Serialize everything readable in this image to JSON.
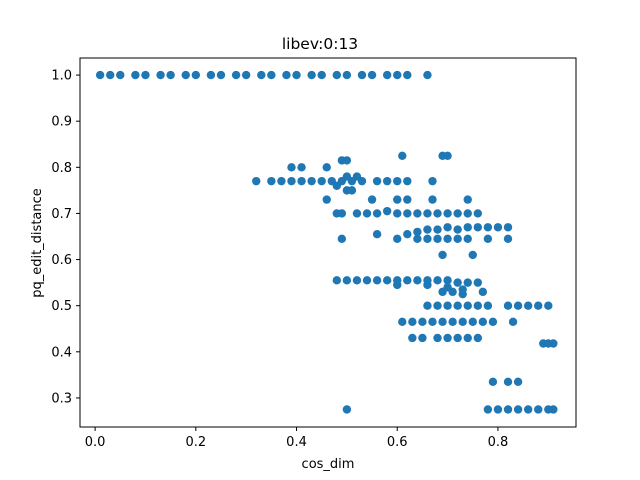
{
  "chart_data": {
    "type": "scatter",
    "title": "libev:0:13",
    "xlabel": "cos_dim",
    "ylabel": "pq_edit_distance",
    "xlim": [
      -0.03,
      0.955
    ],
    "ylim": [
      0.237,
      1.037
    ],
    "xticks": [
      0.0,
      0.2,
      0.4,
      0.6,
      0.8
    ],
    "xtick_labels": [
      "0.0",
      "0.2",
      "0.4",
      "0.6",
      "0.8"
    ],
    "yticks": [
      0.3,
      0.4,
      0.5,
      0.6,
      0.7,
      0.8,
      0.9,
      1.0
    ],
    "ytick_labels": [
      "0.3",
      "0.4",
      "0.5",
      "0.6",
      "0.7",
      "0.8",
      "0.9",
      "1.0"
    ],
    "grid": false,
    "legend": "none",
    "marker_color": "#1f77b4",
    "series": [
      {
        "points": [
          [
            0.01,
            1.0
          ],
          [
            0.03,
            1.0
          ],
          [
            0.05,
            1.0
          ],
          [
            0.08,
            1.0
          ],
          [
            0.1,
            1.0
          ],
          [
            0.13,
            1.0
          ],
          [
            0.15,
            1.0
          ],
          [
            0.18,
            1.0
          ],
          [
            0.2,
            1.0
          ],
          [
            0.23,
            1.0
          ],
          [
            0.25,
            1.0
          ],
          [
            0.28,
            1.0
          ],
          [
            0.3,
            1.0
          ],
          [
            0.33,
            1.0
          ],
          [
            0.35,
            1.0
          ],
          [
            0.38,
            1.0
          ],
          [
            0.4,
            1.0
          ],
          [
            0.43,
            1.0
          ],
          [
            0.45,
            1.0
          ],
          [
            0.48,
            1.0
          ],
          [
            0.5,
            1.0
          ],
          [
            0.53,
            1.0
          ],
          [
            0.55,
            1.0
          ],
          [
            0.58,
            1.0
          ],
          [
            0.6,
            1.0
          ],
          [
            0.62,
            1.0
          ],
          [
            0.66,
            1.0
          ],
          [
            0.32,
            0.77
          ],
          [
            0.35,
            0.77
          ],
          [
            0.37,
            0.77
          ],
          [
            0.39,
            0.77
          ],
          [
            0.41,
            0.77
          ],
          [
            0.43,
            0.77
          ],
          [
            0.45,
            0.77
          ],
          [
            0.47,
            0.77
          ],
          [
            0.49,
            0.77
          ],
          [
            0.51,
            0.77
          ],
          [
            0.53,
            0.77
          ],
          [
            0.56,
            0.77
          ],
          [
            0.58,
            0.77
          ],
          [
            0.6,
            0.77
          ],
          [
            0.62,
            0.77
          ],
          [
            0.67,
            0.77
          ],
          [
            0.39,
            0.8
          ],
          [
            0.41,
            0.8
          ],
          [
            0.46,
            0.8
          ],
          [
            0.49,
            0.815
          ],
          [
            0.5,
            0.815
          ],
          [
            0.5,
            0.78
          ],
          [
            0.52,
            0.78
          ],
          [
            0.48,
            0.76
          ],
          [
            0.5,
            0.75
          ],
          [
            0.51,
            0.75
          ],
          [
            0.61,
            0.825
          ],
          [
            0.69,
            0.825
          ],
          [
            0.7,
            0.825
          ],
          [
            0.46,
            0.73
          ],
          [
            0.48,
            0.7
          ],
          [
            0.49,
            0.7
          ],
          [
            0.52,
            0.7
          ],
          [
            0.54,
            0.7
          ],
          [
            0.56,
            0.7
          ],
          [
            0.58,
            0.705
          ],
          [
            0.6,
            0.7
          ],
          [
            0.62,
            0.7
          ],
          [
            0.64,
            0.7
          ],
          [
            0.66,
            0.7
          ],
          [
            0.68,
            0.7
          ],
          [
            0.7,
            0.7
          ],
          [
            0.72,
            0.7
          ],
          [
            0.74,
            0.7
          ],
          [
            0.76,
            0.7
          ],
          [
            0.55,
            0.73
          ],
          [
            0.6,
            0.73
          ],
          [
            0.62,
            0.73
          ],
          [
            0.67,
            0.73
          ],
          [
            0.74,
            0.73
          ],
          [
            0.49,
            0.645
          ],
          [
            0.56,
            0.655
          ],
          [
            0.6,
            0.645
          ],
          [
            0.62,
            0.655
          ],
          [
            0.64,
            0.66
          ],
          [
            0.66,
            0.665
          ],
          [
            0.68,
            0.665
          ],
          [
            0.7,
            0.67
          ],
          [
            0.72,
            0.665
          ],
          [
            0.74,
            0.67
          ],
          [
            0.76,
            0.67
          ],
          [
            0.78,
            0.67
          ],
          [
            0.8,
            0.67
          ],
          [
            0.82,
            0.67
          ],
          [
            0.64,
            0.645
          ],
          [
            0.66,
            0.645
          ],
          [
            0.68,
            0.645
          ],
          [
            0.7,
            0.645
          ],
          [
            0.72,
            0.645
          ],
          [
            0.74,
            0.645
          ],
          [
            0.78,
            0.645
          ],
          [
            0.82,
            0.645
          ],
          [
            0.69,
            0.61
          ],
          [
            0.75,
            0.61
          ],
          [
            0.48,
            0.555
          ],
          [
            0.5,
            0.555
          ],
          [
            0.52,
            0.555
          ],
          [
            0.54,
            0.555
          ],
          [
            0.56,
            0.555
          ],
          [
            0.58,
            0.555
          ],
          [
            0.6,
            0.555
          ],
          [
            0.62,
            0.555
          ],
          [
            0.64,
            0.555
          ],
          [
            0.66,
            0.555
          ],
          [
            0.68,
            0.555
          ],
          [
            0.7,
            0.555
          ],
          [
            0.72,
            0.55
          ],
          [
            0.74,
            0.55
          ],
          [
            0.76,
            0.55
          ],
          [
            0.6,
            0.545
          ],
          [
            0.66,
            0.545
          ],
          [
            0.7,
            0.54
          ],
          [
            0.73,
            0.535
          ],
          [
            0.69,
            0.53
          ],
          [
            0.71,
            0.53
          ],
          [
            0.73,
            0.525
          ],
          [
            0.77,
            0.53
          ],
          [
            0.66,
            0.5
          ],
          [
            0.68,
            0.5
          ],
          [
            0.7,
            0.5
          ],
          [
            0.72,
            0.5
          ],
          [
            0.74,
            0.5
          ],
          [
            0.76,
            0.5
          ],
          [
            0.78,
            0.5
          ],
          [
            0.82,
            0.5
          ],
          [
            0.84,
            0.5
          ],
          [
            0.86,
            0.5
          ],
          [
            0.88,
            0.5
          ],
          [
            0.9,
            0.5
          ],
          [
            0.61,
            0.465
          ],
          [
            0.63,
            0.465
          ],
          [
            0.65,
            0.465
          ],
          [
            0.67,
            0.465
          ],
          [
            0.69,
            0.465
          ],
          [
            0.71,
            0.465
          ],
          [
            0.73,
            0.465
          ],
          [
            0.75,
            0.465
          ],
          [
            0.77,
            0.465
          ],
          [
            0.79,
            0.465
          ],
          [
            0.83,
            0.465
          ],
          [
            0.63,
            0.43
          ],
          [
            0.65,
            0.43
          ],
          [
            0.68,
            0.43
          ],
          [
            0.7,
            0.43
          ],
          [
            0.72,
            0.43
          ],
          [
            0.74,
            0.43
          ],
          [
            0.76,
            0.43
          ],
          [
            0.89,
            0.418
          ],
          [
            0.9,
            0.418
          ],
          [
            0.91,
            0.418
          ],
          [
            0.79,
            0.335
          ],
          [
            0.82,
            0.335
          ],
          [
            0.84,
            0.335
          ],
          [
            0.5,
            0.275
          ],
          [
            0.78,
            0.275
          ],
          [
            0.8,
            0.275
          ],
          [
            0.82,
            0.275
          ],
          [
            0.84,
            0.275
          ],
          [
            0.86,
            0.275
          ],
          [
            0.88,
            0.275
          ],
          [
            0.9,
            0.275
          ],
          [
            0.91,
            0.275
          ]
        ]
      }
    ]
  }
}
